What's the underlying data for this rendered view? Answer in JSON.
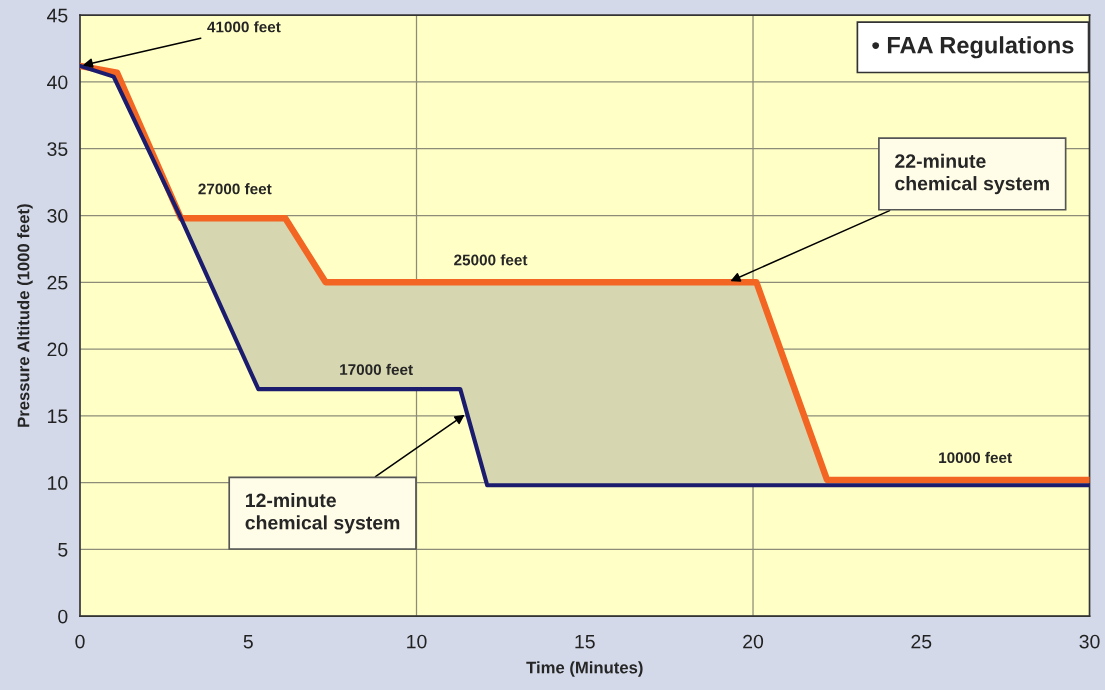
{
  "chart_data": {
    "type": "line",
    "xlabel": "Time (Minutes)",
    "ylabel": "Pressure Altitude (1000 feet)",
    "xlim": [
      0,
      30
    ],
    "xticks": [
      0,
      5,
      10,
      15,
      20,
      25,
      30
    ],
    "ylim": [
      0,
      45
    ],
    "yticks": [
      0,
      5,
      10,
      15,
      20,
      25,
      30,
      35,
      40,
      45
    ],
    "grid": "y",
    "marker": "none",
    "line_style": "solid",
    "ref_lines": [
      {
        "axis": "x",
        "value": 10,
        "color": "#8c8c78"
      },
      {
        "axis": "x",
        "value": 20,
        "color": "#8c8c78"
      }
    ],
    "series": [
      {
        "color": "#f26522",
        "x": [
          0,
          1.1,
          3,
          6.1,
          7.3,
          20.1,
          22.2,
          30
        ],
        "values": [
          41.2,
          40.7,
          29.8,
          29.8,
          25,
          25,
          10.2,
          10.2
        ]
      },
      {
        "color": "#1c1c6e",
        "x": [
          0,
          1,
          3,
          5.3,
          11.3,
          12.1,
          30
        ],
        "values": [
          41.2,
          40.4,
          29.8,
          17,
          17,
          9.8,
          9.8
        ]
      }
    ],
    "annotations": [
      {
        "text": "41000 feet",
        "x": 0,
        "y": 41.2
      },
      {
        "text": "27000 feet",
        "x": 4.6,
        "y": 29.8
      },
      {
        "text": "25000 feet",
        "x": 12.2,
        "y": 25
      },
      {
        "text": "17000 feet",
        "x": 8.8,
        "y": 17
      },
      {
        "text": "10000 feet",
        "x": 26.6,
        "y": 10.2
      },
      {
        "text": "22-minute\nchemical system",
        "x": 19.25,
        "y": 25
      },
      {
        "text": "12-minute\nchemical system",
        "x": 11.5,
        "y": 15.2
      },
      "• FAA Regulations"
    ]
  }
}
